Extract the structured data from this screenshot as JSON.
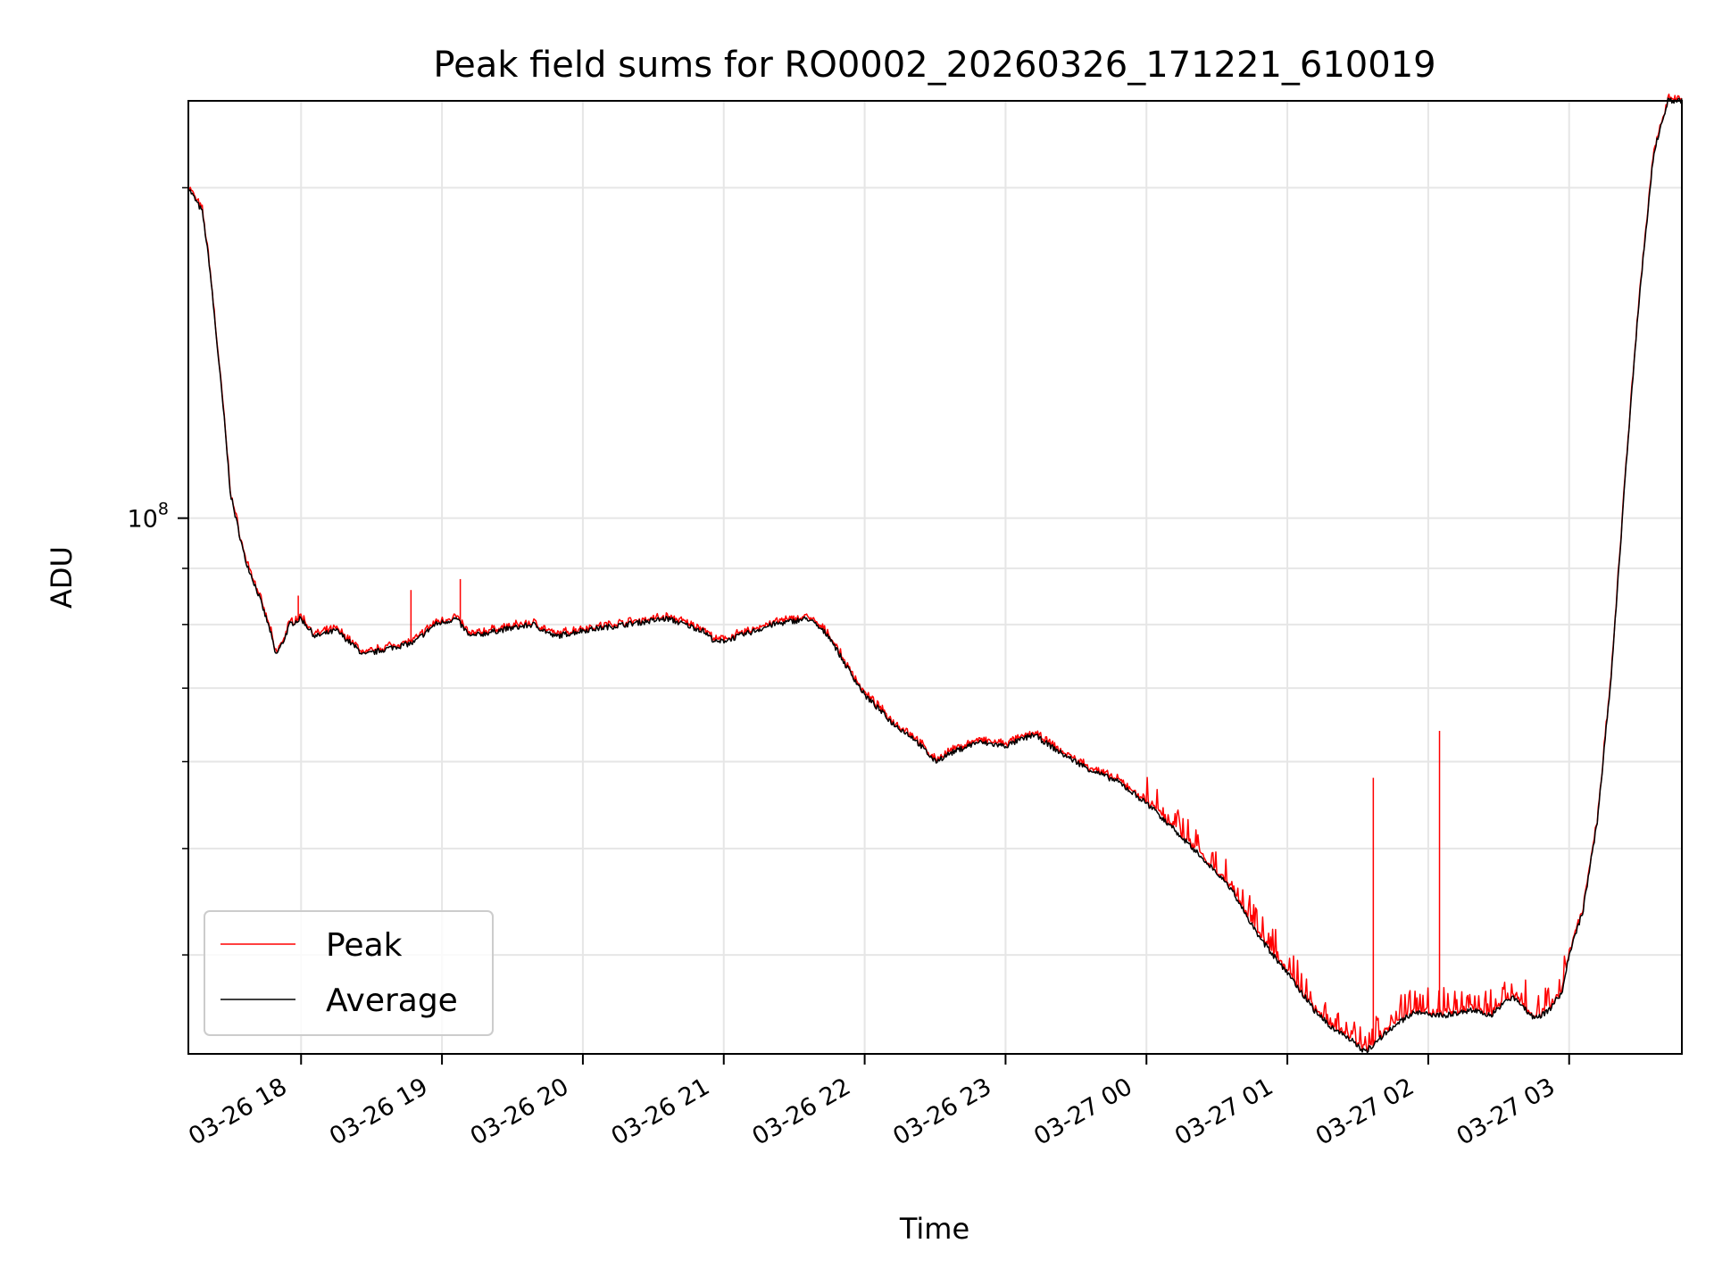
{
  "chart_data": {
    "type": "line",
    "title": "Peak field sums for RO0002_20260326_171221_610019",
    "xlabel": "Time",
    "ylabel": "ADU",
    "yscale": "log",
    "ytick_major": {
      "value": 100000000,
      "base": "10",
      "exponent": "8"
    },
    "x_range_hours": [
      17.2,
      27.8
    ],
    "y_range": [
      32500000,
      240000000
    ],
    "x_ticks": [
      {
        "hour": 18,
        "label": "03-26 18"
      },
      {
        "hour": 19,
        "label": "03-26 19"
      },
      {
        "hour": 20,
        "label": "03-26 20"
      },
      {
        "hour": 21,
        "label": "03-26 21"
      },
      {
        "hour": 22,
        "label": "03-26 22"
      },
      {
        "hour": 23,
        "label": "03-26 23"
      },
      {
        "hour": 24,
        "label": "03-27 00"
      },
      {
        "hour": 25,
        "label": "03-27 01"
      },
      {
        "hour": 26,
        "label": "03-27 02"
      },
      {
        "hour": 27,
        "label": "03-27 03"
      }
    ],
    "y_minor_ticks": [
      40000000,
      50000000,
      60000000,
      70000000,
      80000000,
      90000000,
      200000000
    ],
    "grid": true,
    "legend_position": "bottom-left",
    "series": [
      {
        "name": "Peak",
        "color": "#ff0000",
        "spikes": [
          {
            "hour": 17.98,
            "value": 85000000
          },
          {
            "hour": 18.78,
            "value": 86000000
          },
          {
            "hour": 19.13,
            "value": 88000000
          },
          {
            "hour": 25.61,
            "value": 58000000
          },
          {
            "hour": 26.08,
            "value": 64000000
          }
        ]
      },
      {
        "name": "Average",
        "color": "#000000",
        "points": [
          [
            17.2,
            200000000
          ],
          [
            17.3,
            190000000
          ],
          [
            17.35,
            170000000
          ],
          [
            17.45,
            125000000
          ],
          [
            17.5,
            105000000
          ],
          [
            17.6,
            92000000
          ],
          [
            17.7,
            85000000
          ],
          [
            17.78,
            79000000
          ],
          [
            17.82,
            75000000
          ],
          [
            17.87,
            77000000
          ],
          [
            17.92,
            80000000
          ],
          [
            18.0,
            81000000
          ],
          [
            18.1,
            78000000
          ],
          [
            18.25,
            79000000
          ],
          [
            18.35,
            77000000
          ],
          [
            18.45,
            75000000
          ],
          [
            18.6,
            76000000
          ],
          [
            18.8,
            77000000
          ],
          [
            18.95,
            80000000
          ],
          [
            19.1,
            81000000
          ],
          [
            19.2,
            78000000
          ],
          [
            19.4,
            79000000
          ],
          [
            19.65,
            80000000
          ],
          [
            19.8,
            78000000
          ],
          [
            20.0,
            79000000
          ],
          [
            20.3,
            80000000
          ],
          [
            20.6,
            81000000
          ],
          [
            20.85,
            79000000
          ],
          [
            20.95,
            77000000
          ],
          [
            21.1,
            78000000
          ],
          [
            21.35,
            80000000
          ],
          [
            21.6,
            81000000
          ],
          [
            21.75,
            78000000
          ],
          [
            21.85,
            74000000
          ],
          [
            22.0,
            69000000
          ],
          [
            22.1,
            67000000
          ],
          [
            22.2,
            65000000
          ],
          [
            22.35,
            63000000
          ],
          [
            22.5,
            60000000
          ],
          [
            22.6,
            61000000
          ],
          [
            22.8,
            62500000
          ],
          [
            23.0,
            62000000
          ],
          [
            23.2,
            63500000
          ],
          [
            23.4,
            61000000
          ],
          [
            23.6,
            59000000
          ],
          [
            23.8,
            57500000
          ],
          [
            24.0,
            55000000
          ],
          [
            24.2,
            52000000
          ],
          [
            24.4,
            49000000
          ],
          [
            24.6,
            46000000
          ],
          [
            24.8,
            41500000
          ],
          [
            25.0,
            38500000
          ],
          [
            25.1,
            37000000
          ],
          [
            25.2,
            35500000
          ],
          [
            25.3,
            34500000
          ],
          [
            25.45,
            33500000
          ],
          [
            25.55,
            32600000
          ],
          [
            25.7,
            34000000
          ],
          [
            25.9,
            35500000
          ],
          [
            26.1,
            35200000
          ],
          [
            26.3,
            35600000
          ],
          [
            26.45,
            35300000
          ],
          [
            26.6,
            36700000
          ],
          [
            26.75,
            35000000
          ],
          [
            26.85,
            35500000
          ],
          [
            26.95,
            37000000
          ],
          [
            27.0,
            40000000
          ],
          [
            27.1,
            44000000
          ],
          [
            27.2,
            53000000
          ],
          [
            27.3,
            72000000
          ],
          [
            27.4,
            110000000
          ],
          [
            27.5,
            160000000
          ],
          [
            27.6,
            215000000
          ],
          [
            27.7,
            240000000
          ],
          [
            27.8,
            240000000
          ]
        ]
      }
    ]
  }
}
